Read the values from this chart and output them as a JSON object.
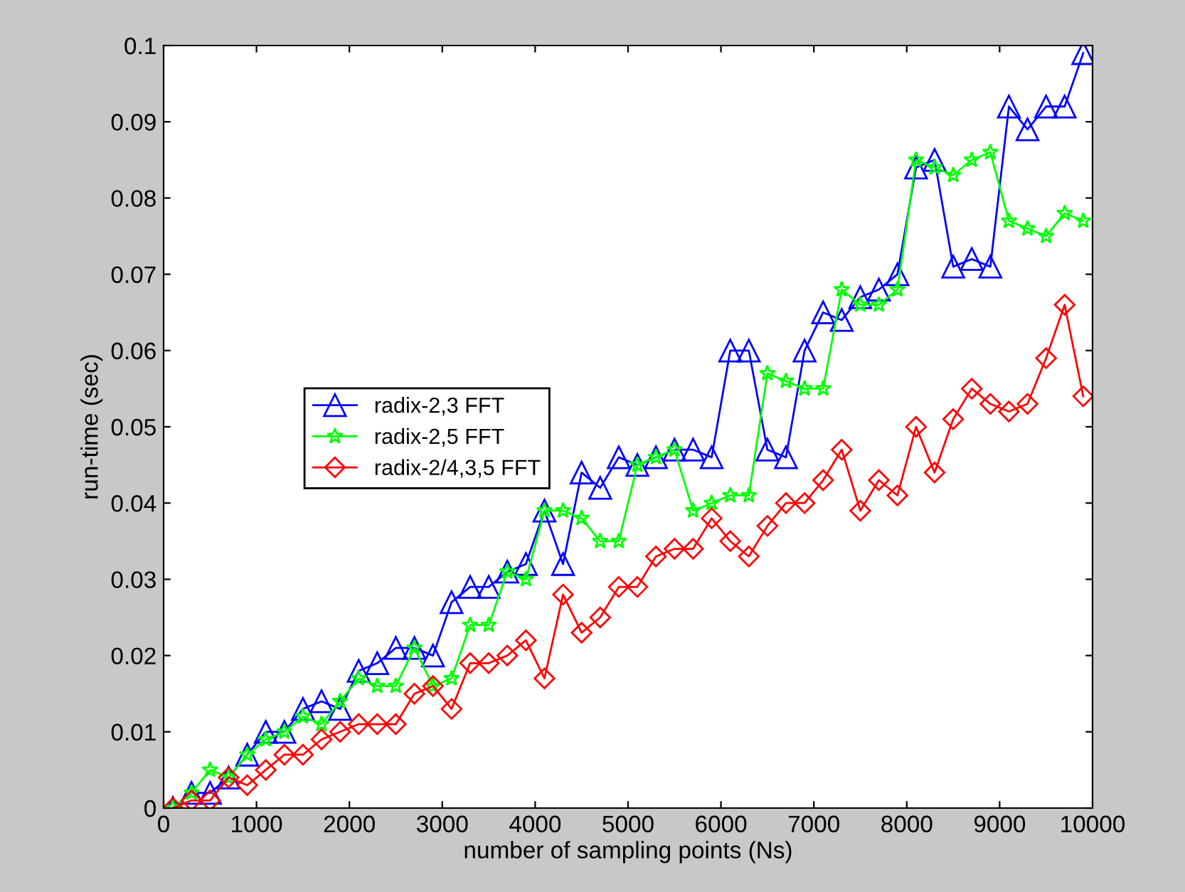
{
  "chart_data": {
    "type": "line",
    "xlabel": "number of sampling points (Ns)",
    "ylabel": "run-time (sec)",
    "x": [
      100,
      300,
      500,
      700,
      900,
      1100,
      1300,
      1500,
      1700,
      1900,
      2100,
      2300,
      2500,
      2700,
      2900,
      3100,
      3300,
      3500,
      3700,
      3900,
      4100,
      4300,
      4500,
      4700,
      4900,
      5100,
      5300,
      5500,
      5700,
      5900,
      6100,
      6300,
      6500,
      6700,
      6900,
      7100,
      7300,
      7500,
      7700,
      7900,
      8100,
      8300,
      8500,
      8700,
      8900,
      9100,
      9300,
      9500,
      9700,
      9900
    ],
    "series": [
      {
        "name": "radix-2,3 FFT",
        "color": "#0000ff",
        "marker": "triangle",
        "values": [
          0.0,
          0.002,
          0.002,
          0.004,
          0.007,
          0.01,
          0.01,
          0.013,
          0.014,
          0.013,
          0.018,
          0.019,
          0.021,
          0.021,
          0.02,
          0.027,
          0.029,
          0.029,
          0.031,
          0.032,
          0.039,
          0.032,
          0.044,
          0.042,
          0.046,
          0.045,
          0.046,
          0.047,
          0.047,
          0.046,
          0.06,
          0.06,
          0.047,
          0.046,
          0.06,
          0.065,
          0.064,
          0.067,
          0.068,
          0.07,
          0.084,
          0.085,
          0.071,
          0.072,
          0.071,
          0.092,
          0.089,
          0.092,
          0.092,
          0.099
        ]
      },
      {
        "name": "radix-2,5 FFT",
        "color": "#00ff00",
        "marker": "star",
        "values": [
          0.0,
          0.002,
          0.005,
          0.004,
          0.007,
          0.009,
          0.01,
          0.012,
          0.011,
          0.014,
          0.017,
          0.016,
          0.016,
          0.021,
          0.016,
          0.017,
          0.024,
          0.024,
          0.031,
          0.03,
          0.039,
          0.039,
          0.038,
          0.035,
          0.035,
          0.045,
          0.046,
          0.047,
          0.039,
          0.04,
          0.041,
          0.041,
          0.057,
          0.056,
          0.055,
          0.055,
          0.068,
          0.066,
          0.066,
          0.068,
          0.085,
          0.084,
          0.083,
          0.085,
          0.086,
          0.077,
          0.076,
          0.075,
          0.078,
          0.077
        ]
      },
      {
        "name": "radix-2/4,3,5 FFT",
        "color": "#ff0000",
        "marker": "diamond",
        "values": [
          0.0,
          0.001,
          0.001,
          0.004,
          0.003,
          0.005,
          0.007,
          0.007,
          0.009,
          0.01,
          0.011,
          0.011,
          0.011,
          0.015,
          0.016,
          0.013,
          0.019,
          0.019,
          0.02,
          0.022,
          0.017,
          0.028,
          0.023,
          0.025,
          0.029,
          0.029,
          0.033,
          0.034,
          0.034,
          0.038,
          0.035,
          0.033,
          0.037,
          0.04,
          0.04,
          0.043,
          0.047,
          0.039,
          0.043,
          0.041,
          0.05,
          0.044,
          0.051,
          0.055,
          0.053,
          0.052,
          0.053,
          0.059,
          0.066,
          0.054
        ]
      }
    ],
    "xlim": [
      0,
      10000
    ],
    "xticks": [
      0,
      1000,
      2000,
      3000,
      4000,
      5000,
      6000,
      7000,
      8000,
      9000,
      10000
    ],
    "ylim": [
      0,
      0.1
    ],
    "yticks": [
      0,
      0.01,
      0.02,
      0.03,
      0.04,
      0.05,
      0.06,
      0.07,
      0.08,
      0.09,
      0.1
    ],
    "grid": false,
    "legend": "center left",
    "line_style": "solid"
  }
}
